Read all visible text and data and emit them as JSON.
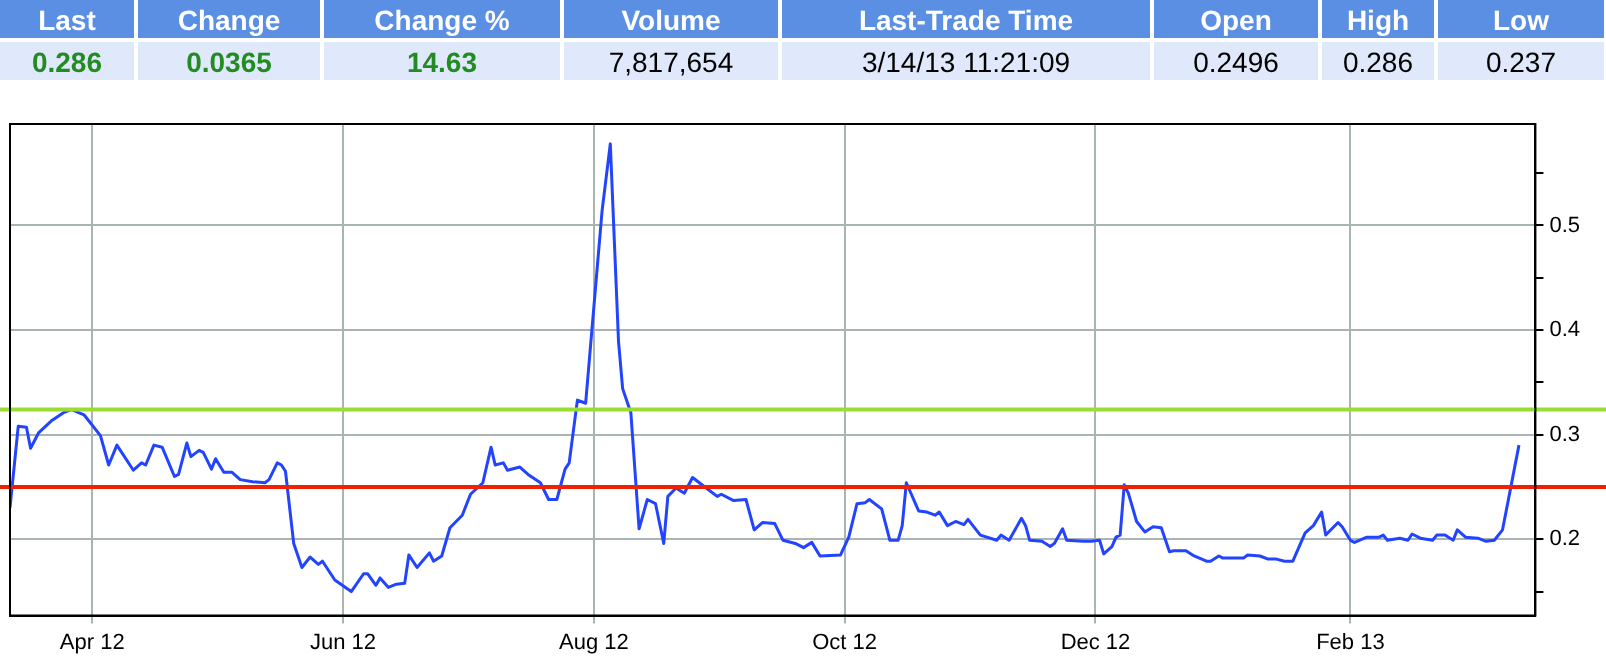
{
  "chart_data": [
    {
      "type": "other",
      "categories": [
        "Last",
        "Change",
        "Change %",
        "Volume",
        "Last-Trade Time",
        "Open",
        "High",
        "Low"
      ],
      "value_labels": [
        "0.286",
        "0.0365",
        "14.63",
        "7,817,654",
        "3/14/13 11:21:09",
        "0.2496",
        "0.286",
        "0.237"
      ]
    },
    {
      "type": "line",
      "line_style": "solid",
      "marker": "none",
      "grid": true,
      "legend": false,
      "x": [
        "2012-03-12",
        "2012-03-14",
        "2012-03-16",
        "2012-03-17",
        "2012-03-19",
        "2012-03-22",
        "2012-03-25",
        "2012-03-27",
        "2012-03-30",
        "2012-04-03",
        "2012-04-05",
        "2012-04-07",
        "2012-04-11",
        "2012-04-13",
        "2012-04-14",
        "2012-04-16",
        "2012-04-18",
        "2012-04-21",
        "2012-04-22",
        "2012-04-24",
        "2012-04-25",
        "2012-04-27",
        "2012-04-28",
        "2012-04-30",
        "2012-05-01",
        "2012-05-03",
        "2012-05-05",
        "2012-05-07",
        "2012-05-10",
        "2012-05-13",
        "2012-05-14",
        "2012-05-16",
        "2012-05-17",
        "2012-05-18",
        "2012-05-20",
        "2012-05-22",
        "2012-05-24",
        "2012-05-26",
        "2012-05-27",
        "2012-05-30",
        "2012-06-03",
        "2012-06-06",
        "2012-06-07",
        "2012-06-09",
        "2012-06-10",
        "2012-06-12",
        "2012-06-14",
        "2012-06-16",
        "2012-06-17",
        "2012-06-19",
        "2012-06-22",
        "2012-06-23",
        "2012-06-25",
        "2012-06-27",
        "2012-06-30",
        "2012-07-02",
        "2012-07-05",
        "2012-07-07",
        "2012-07-08",
        "2012-07-10",
        "2012-07-11",
        "2012-07-14",
        "2012-07-16",
        "2012-07-19",
        "2012-07-21",
        "2012-07-23",
        "2012-07-25",
        "2012-07-26",
        "2012-07-28",
        "2012-07-30",
        "2012-08-03",
        "2012-08-05",
        "2012-08-07",
        "2012-08-08",
        "2012-08-10",
        "2012-08-12",
        "2012-08-14",
        "2012-08-16",
        "2012-08-18",
        "2012-08-19",
        "2012-08-21",
        "2012-08-23",
        "2012-08-25",
        "2012-08-28",
        "2012-08-31",
        "2012-09-01",
        "2012-09-04",
        "2012-09-07",
        "2012-09-09",
        "2012-09-11",
        "2012-09-14",
        "2012-09-16",
        "2012-09-19",
        "2012-09-21",
        "2012-09-23",
        "2012-09-25",
        "2012-09-30",
        "2012-10-02",
        "2012-10-04",
        "2012-10-06",
        "2012-10-07",
        "2012-10-10",
        "2012-10-12",
        "2012-10-14",
        "2012-10-15",
        "2012-10-16",
        "2012-10-19",
        "2012-10-21",
        "2012-10-23",
        "2012-10-24",
        "2012-10-26",
        "2012-10-28",
        "2012-10-30",
        "2012-10-31",
        "2012-11-03",
        "2012-11-07",
        "2012-11-08",
        "2012-11-10",
        "2012-11-13",
        "2012-11-14",
        "2012-11-15",
        "2012-11-18",
        "2012-11-20",
        "2012-11-21",
        "2012-11-23",
        "2012-11-24",
        "2012-11-28",
        "2012-11-30",
        "2012-12-02",
        "2012-12-03",
        "2012-12-05",
        "2012-12-06",
        "2012-12-07",
        "2012-12-08",
        "2012-12-09",
        "2012-12-11",
        "2012-12-13",
        "2012-12-15",
        "2012-12-17",
        "2012-12-19",
        "2012-12-20",
        "2012-12-23",
        "2012-12-25",
        "2012-12-28",
        "2012-12-29",
        "2012-12-31",
        "2013-01-01",
        "2013-01-03",
        "2013-01-06",
        "2013-01-07",
        "2013-01-10",
        "2013-01-12",
        "2013-01-14",
        "2013-01-16",
        "2013-01-18",
        "2013-01-21",
        "2013-01-23",
        "2013-01-25",
        "2013-01-26",
        "2013-01-29",
        "2013-01-30",
        "2013-02-01",
        "2013-02-02",
        "2013-02-05",
        "2013-02-08",
        "2013-02-09",
        "2013-02-10",
        "2013-02-13",
        "2013-02-15",
        "2013-02-16",
        "2013-02-18",
        "2013-02-21",
        "2013-02-22",
        "2013-02-24",
        "2013-02-26",
        "2013-02-27",
        "2013-03-01",
        "2013-03-04",
        "2013-03-06",
        "2013-03-08",
        "2013-03-10",
        "2013-03-14"
      ],
      "series": [
        {
          "color": "#2244ff",
          "values": [
            0.23,
            0.308,
            0.307,
            0.287,
            0.302,
            0.313,
            0.321,
            0.324,
            0.319,
            0.299,
            0.271,
            0.29,
            0.266,
            0.273,
            0.271,
            0.29,
            0.288,
            0.26,
            0.262,
            0.292,
            0.279,
            0.285,
            0.283,
            0.267,
            0.277,
            0.264,
            0.264,
            0.257,
            0.255,
            0.254,
            0.257,
            0.273,
            0.271,
            0.265,
            0.196,
            0.173,
            0.183,
            0.176,
            0.179,
            0.161,
            0.15,
            0.167,
            0.167,
            0.156,
            0.163,
            0.154,
            0.157,
            0.158,
            0.185,
            0.173,
            0.187,
            0.179,
            0.184,
            0.211,
            0.223,
            0.243,
            0.254,
            0.288,
            0.271,
            0.273,
            0.266,
            0.269,
            0.262,
            0.254,
            0.238,
            0.238,
            0.267,
            0.273,
            0.333,
            0.33,
            0.514,
            0.578,
            0.389,
            0.344,
            0.321,
            0.21,
            0.238,
            0.234,
            0.196,
            0.241,
            0.249,
            0.244,
            0.259,
            0.25,
            0.241,
            0.243,
            0.237,
            0.238,
            0.209,
            0.216,
            0.215,
            0.199,
            0.196,
            0.192,
            0.197,
            0.184,
            0.185,
            0.202,
            0.234,
            0.235,
            0.238,
            0.229,
            0.199,
            0.199,
            0.213,
            0.254,
            0.227,
            0.226,
            0.223,
            0.226,
            0.213,
            0.217,
            0.214,
            0.219,
            0.204,
            0.199,
            0.204,
            0.199,
            0.22,
            0.213,
            0.199,
            0.198,
            0.193,
            0.196,
            0.21,
            0.199,
            0.198,
            0.198,
            0.199,
            0.186,
            0.193,
            0.202,
            0.204,
            0.252,
            0.244,
            0.217,
            0.207,
            0.212,
            0.211,
            0.188,
            0.189,
            0.189,
            0.184,
            0.179,
            0.179,
            0.184,
            0.182,
            0.182,
            0.182,
            0.185,
            0.184,
            0.181,
            0.181,
            0.179,
            0.179,
            0.206,
            0.213,
            0.226,
            0.204,
            0.216,
            0.212,
            0.199,
            0.197,
            0.202,
            0.202,
            0.204,
            0.199,
            0.201,
            0.199,
            0.205,
            0.201,
            0.199,
            0.204,
            0.204,
            0.199,
            0.209,
            0.202,
            0.201,
            0.198,
            0.199,
            0.209,
            0.29
          ]
        }
      ],
      "xlim": [
        "2012-03-12",
        "2013-03-18"
      ],
      "xticks": [
        {
          "value": "2012-04-01",
          "label": "Apr 12"
        },
        {
          "value": "2012-06-01",
          "label": "Jun 12"
        },
        {
          "value": "2012-08-01",
          "label": "Aug 12"
        },
        {
          "value": "2012-10-01",
          "label": "Oct 12"
        },
        {
          "value": "2012-12-01",
          "label": "Dec 12"
        },
        {
          "value": "2013-02-01",
          "label": "Feb 13"
        }
      ],
      "ylim": [
        0.127,
        0.597
      ],
      "yticks": [
        {
          "value": 0.15,
          "label": null
        },
        0.2,
        {
          "value": 0.25,
          "label": null
        },
        0.3,
        {
          "value": 0.35,
          "label": null
        },
        0.4,
        {
          "value": 0.45,
          "label": null
        },
        0.5,
        {
          "value": 0.55,
          "label": null
        }
      ],
      "ref_lines": [
        {
          "axis": "y",
          "value": 0.324,
          "color": "#99dd33"
        },
        {
          "axis": "y",
          "value": 0.25,
          "color": "#ee2200"
        }
      ]
    }
  ]
}
